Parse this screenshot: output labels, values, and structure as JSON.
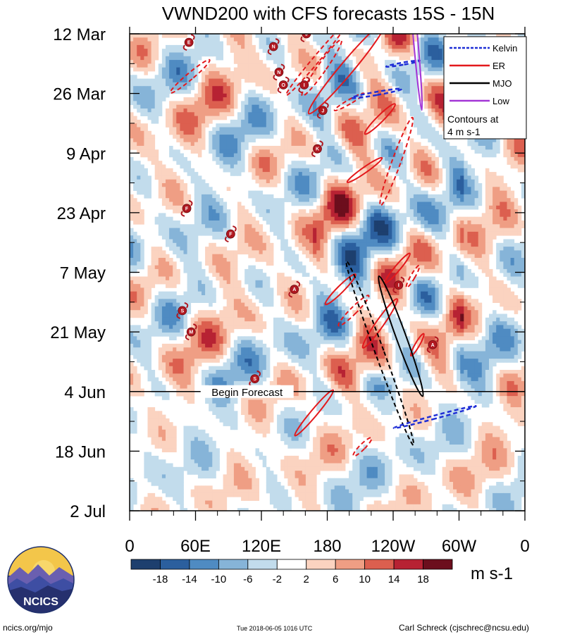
{
  "chart_data": {
    "type": "heatmap",
    "title": "VWND200 with CFS forecasts  15S - 15N",
    "x_axis": {
      "label": "",
      "ticks": [
        "0",
        "60E",
        "120E",
        "180",
        "120W",
        "60W",
        "0"
      ],
      "range_deg": [
        0,
        360
      ]
    },
    "y_axis": {
      "label": "",
      "ticks": [
        "12 Mar",
        "26 Mar",
        "9 Apr",
        "23 Apr",
        "7 May",
        "21 May",
        "4 Jun",
        "18 Jun",
        "2 Jul"
      ],
      "range_days": [
        0,
        112
      ],
      "direction": "time increases downward"
    },
    "forecast_line": {
      "label": "Begin Forecast",
      "day": 84
    },
    "colorbar": {
      "unit": "m s-1",
      "labels": [
        "-18",
        "-14",
        "-10",
        "-6",
        "-2",
        "2",
        "6",
        "10",
        "14",
        "18"
      ],
      "colors": [
        "#1d3f6e",
        "#2b5f9e",
        "#4f8bc2",
        "#86b4d8",
        "#c2dcec",
        "#ffffff",
        "#fbd3c0",
        "#ef9e84",
        "#dc5f4f",
        "#b72233",
        "#6c0e1d"
      ]
    },
    "legend": {
      "items": [
        {
          "label": "Kelvin",
          "color": "#1f2fd6",
          "dashed": true
        },
        {
          "label": "ER",
          "color": "#e3191c",
          "dashed": false
        },
        {
          "label": "MJO",
          "color": "#000000",
          "dashed": false
        },
        {
          "label": "Low",
          "color": "#a336d6",
          "dashed": false
        }
      ],
      "note_line1": "Contours at",
      "note_line2": "4 m s-1",
      "placement": "top-right"
    },
    "contours": [
      {
        "type": "ER",
        "lon": 175,
        "day": 8,
        "rx": 4,
        "ry": 8,
        "rot": 35,
        "dashed": true
      },
      {
        "type": "ER",
        "lon": 198,
        "day": 8,
        "rx": 6,
        "ry": 14,
        "rot": 40,
        "dashed": false
      },
      {
        "type": "ER",
        "lon": 170,
        "day": 6,
        "rx": 3,
        "ry": 11,
        "rot": 40,
        "dashed": true
      },
      {
        "type": "ER",
        "lon": 55,
        "day": 10,
        "rx": 3,
        "ry": 6,
        "rot": 50,
        "dashed": true
      },
      {
        "type": "ER",
        "lon": 200,
        "day": 16,
        "rx": 2,
        "ry": 4,
        "rot": 60,
        "dashed": true
      },
      {
        "type": "ER",
        "lon": 228,
        "day": 20,
        "rx": 3,
        "ry": 5,
        "rot": 45,
        "dashed": false
      },
      {
        "type": "ER",
        "lon": 243,
        "day": 30,
        "rx": 4,
        "ry": 11,
        "rot": 20,
        "dashed": true
      },
      {
        "type": "ER",
        "lon": 214,
        "day": 32,
        "rx": 2.5,
        "ry": 5,
        "rot": 55,
        "dashed": false
      },
      {
        "type": "ER",
        "lon": 244,
        "day": 55,
        "rx": 2.5,
        "ry": 4.5,
        "rot": 40,
        "dashed": false
      },
      {
        "type": "ER",
        "lon": 258,
        "day": 57,
        "rx": 2,
        "ry": 3,
        "rot": 30,
        "dashed": true
      },
      {
        "type": "ER",
        "lon": 192,
        "day": 60,
        "rx": 3,
        "ry": 5,
        "rot": 45,
        "dashed": false
      },
      {
        "type": "ER",
        "lon": 204,
        "day": 65,
        "rx": 3,
        "ry": 5,
        "rot": 45,
        "dashed": true
      },
      {
        "type": "ER",
        "lon": 228,
        "day": 68,
        "rx": 3.5,
        "ry": 7,
        "rot": 35,
        "dashed": false
      },
      {
        "type": "ER",
        "lon": 262,
        "day": 73,
        "rx": 2,
        "ry": 3,
        "rot": 30,
        "dashed": false
      },
      {
        "type": "ER",
        "lon": 168,
        "day": 89,
        "rx": 3,
        "ry": 7,
        "rot": 40,
        "dashed": false
      },
      {
        "type": "ER",
        "lon": 212,
        "day": 97,
        "rx": 2.5,
        "ry": 3,
        "rot": 45,
        "dashed": true
      },
      {
        "type": "MJO",
        "lon": 247,
        "day": 71,
        "rx": 4.5,
        "ry": 15,
        "rot": -20,
        "dashed": false
      },
      {
        "type": "MJO",
        "lon": 228,
        "day": 75,
        "rx": 4,
        "ry": 23,
        "rot": -20,
        "dashed": true
      },
      {
        "type": "Kelvin",
        "lon": 225,
        "day": 14,
        "rx": 1.5,
        "ry": 6,
        "rot": 80,
        "dashed": true
      },
      {
        "type": "Kelvin",
        "lon": 249,
        "day": 7,
        "rx": 1,
        "ry": 4,
        "rot": 80,
        "dashed": true
      },
      {
        "type": "Kelvin",
        "lon": 278,
        "day": 90,
        "rx": 1.5,
        "ry": 10,
        "rot": 75,
        "dashed": true
      },
      {
        "type": "Low",
        "lon": 260,
        "day": 0,
        "rx": 2,
        "ry": 18,
        "rot": -5,
        "dashed": false
      }
    ],
    "storms": [
      {
        "label": "E",
        "lon": 54,
        "day": 2
      },
      {
        "label": "N",
        "lon": 131,
        "day": 3
      },
      {
        "label": "J",
        "lon": 161,
        "day": 0
      },
      {
        "label": "N",
        "lon": 136,
        "day": 9
      },
      {
        "label": "O",
        "lon": 140,
        "day": 12
      },
      {
        "label": "I",
        "lon": 159,
        "day": 12
      },
      {
        "label": "J",
        "lon": 176,
        "day": 18
      },
      {
        "label": "K",
        "lon": 171,
        "day": 27
      },
      {
        "label": "F",
        "lon": 52,
        "day": 41
      },
      {
        "label": "F",
        "lon": 92,
        "day": 47
      },
      {
        "label": "A",
        "lon": 150,
        "day": 60
      },
      {
        "label": "I",
        "lon": 245,
        "day": 59
      },
      {
        "label": "S",
        "lon": 48,
        "day": 65
      },
      {
        "label": "M",
        "lon": 56,
        "day": 70
      },
      {
        "label": "S",
        "lon": 114,
        "day": 81
      },
      {
        "label": "A",
        "lon": 276,
        "day": 73
      }
    ]
  },
  "footer": {
    "left": "ncics.org/mjo",
    "middle": "Tue 2018-06-05 1016 UTC",
    "right": "Carl Schreck (cjschrec@ncsu.edu)",
    "logo_text": "NCICS"
  }
}
